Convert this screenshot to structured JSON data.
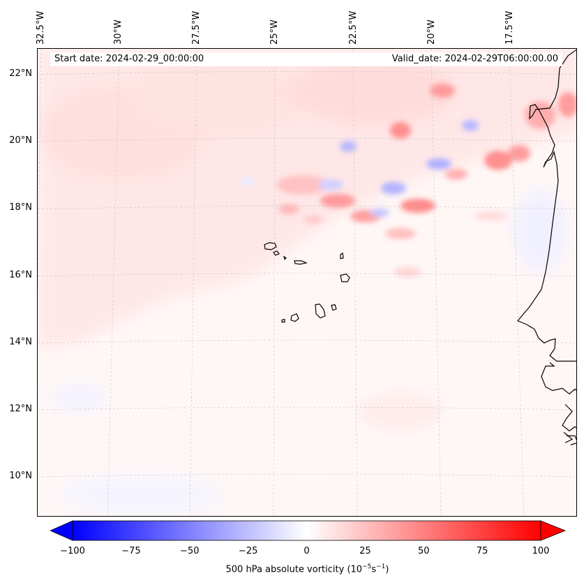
{
  "map": {
    "start_date": "Start date: 2024-02-29_00:00:00",
    "valid_date": "Valid_date: 2024-02-29T06:00:00.00",
    "longitude_labels": [
      "32.5°W",
      "30°W",
      "27.5°W",
      "25°W",
      "22.5°W",
      "20°W",
      "17.5°W"
    ],
    "latitude_labels": [
      "22°N",
      "20°N",
      "18°N",
      "16°N",
      "14°N",
      "12°N",
      "10°N"
    ],
    "extent": {
      "lon_min": -33.0,
      "lon_max": -15.8,
      "lat_min": 8.9,
      "lat_max": 22.8
    },
    "background_field": "weak positive vorticity",
    "features": [
      "Cape Verde islands",
      "West African coastline"
    ]
  },
  "colorbar": {
    "label": "500 hPa absolute vorticity (10",
    "label_exp1": "−5",
    "label_mid": "s",
    "label_exp2": "−1",
    "label_end": ")",
    "ticks": [
      "−100",
      "−75",
      "−50",
      "−25",
      "0",
      "25",
      "50",
      "75",
      "100"
    ],
    "range": [
      -100,
      100
    ],
    "extend": "both",
    "colormap": "bwr",
    "colors": {
      "min": "#0000ff",
      "mid": "#ffffff",
      "max": "#ff0000"
    }
  }
}
